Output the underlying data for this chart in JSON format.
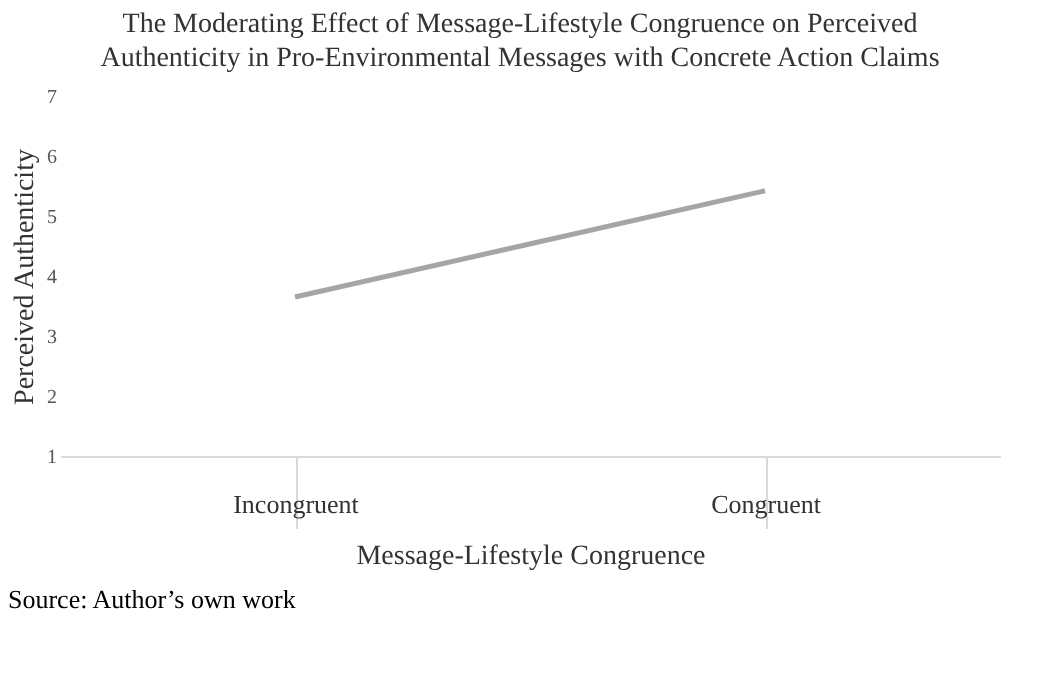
{
  "chart_data": {
    "type": "line",
    "title": "The Moderating Effect of Message-Lifestyle Congruence on Perceived Authenticity in Pro-Environmental Messages with Concrete Action Claims",
    "xlabel": "Message-Lifestyle Congruence",
    "ylabel": "Perceived Authenticity",
    "categories": [
      "Incongruent",
      "Congruent"
    ],
    "series": [
      {
        "color": "#a5a5a5",
        "values": [
          3.65,
          5.42
        ]
      }
    ],
    "ylim": [
      1,
      7
    ],
    "yticks": [
      1,
      2,
      3,
      4,
      5,
      6,
      7
    ],
    "grid": false,
    "legend": false,
    "marker": "none",
    "line_style": "solid",
    "annotations": [
      "Source: Author’s own work"
    ]
  }
}
